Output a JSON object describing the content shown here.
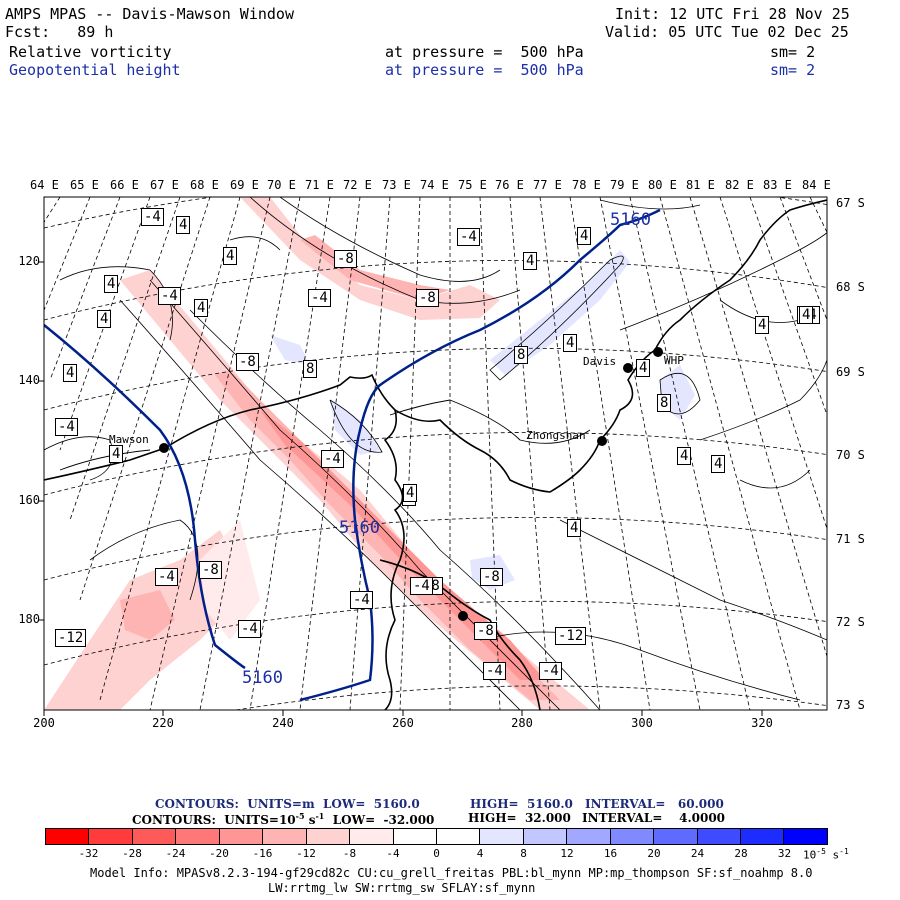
{
  "header": {
    "title": "AMPS MPAS -- Davis-Mawson Window",
    "forecast": "Fcst:   89 h",
    "init": "Init: 12 UTC Fri 28 Nov 25",
    "valid": "Valid: 05 UTC Tue 02 Dec 25",
    "field1_name": "Relative vorticity",
    "field1_level": "at pressure =  500 hPa",
    "field1_sm": "sm= 2",
    "field2_name": "Geopotential height",
    "field2_level": "at pressure =  500 hPa",
    "field2_sm": "sm= 2"
  },
  "map": {
    "lon_labels": [
      "64 E",
      "65 E",
      "66 E",
      "67 E",
      "68 E",
      "69 E",
      "70 E",
      "71 E",
      "72 E",
      "73 E",
      "74 E",
      "75 E",
      "76 E",
      "77 E",
      "78 E",
      "79 E",
      "80 E",
      "81 E",
      "82 E",
      "83 E",
      "84 E"
    ],
    "lat_labels": [
      "67 S",
      "68 S",
      "69 S",
      "70 S",
      "71 S",
      "72 S",
      "73 S"
    ],
    "x_axis": [
      "200",
      "220",
      "240",
      "260",
      "280",
      "300",
      "320"
    ],
    "y_axis": [
      "120",
      "140",
      "160",
      "180"
    ],
    "stations": [
      "Mawson",
      "Davis",
      "WHP",
      "Zhongshan"
    ],
    "height_labels": [
      "5160",
      "5160",
      "5160"
    ],
    "vort_labels": [
      "-4",
      "4",
      "4",
      "4",
      "-4",
      "4",
      "4",
      "4",
      "-4",
      "-8",
      "-8",
      "-4",
      "-8",
      "-4",
      "8",
      "-8",
      "-4",
      "4",
      "4",
      "4",
      "8",
      "4",
      "4",
      "8",
      "4",
      "4",
      "4",
      "4",
      "-4",
      "-4",
      "-8",
      "-4",
      "-4",
      "-4",
      "-4",
      "-8",
      "-8",
      "-4",
      "-12",
      "-12",
      "4",
      "4",
      "4"
    ]
  },
  "contours": {
    "line1_label": "CONTOURS:  UNITS=m  LOW=  5160.0",
    "line1_high": "HIGH=  5160.0",
    "line1_interval": "INTERVAL=   60.000",
    "line2_label": "CONTOURS:  UNITS=10",
    "line2_exp": "-5",
    "line2_unit": " s",
    "line2_exp2": "-1",
    "line2_low": "  LOW=  -32.000",
    "line2_high": "HIGH=  32.000",
    "line2_interval": "INTERVAL=    4.0000"
  },
  "colorbar": {
    "colors": [
      "#ff0000",
      "#ff3b3b",
      "#ff5a5a",
      "#ff7878",
      "#ff9696",
      "#ffb4b4",
      "#ffd2d2",
      "#ffebeb",
      "#ffffff",
      "#ffffff",
      "#e4e6ff",
      "#c3c7ff",
      "#a2a8ff",
      "#8189ff",
      "#5f6aff",
      "#3e4bff",
      "#1e2dff",
      "#0000ff"
    ],
    "labels": [
      "-32",
      "-28",
      "-24",
      "-20",
      "-16",
      "-12",
      "-8",
      "-4",
      "0",
      "4",
      "8",
      "12",
      "16",
      "20",
      "24",
      "28",
      "32"
    ],
    "units_label": "10",
    "units_exp": "-5",
    "units_rest": " s",
    "units_exp2": "-1"
  },
  "footer": {
    "line1": "Model Info: MPASv8.2.3-194-gf29cd82c CU:cu_grell_freitas PBL:bl_mynn MP:mp_thompson SF:sf_noahmp 8.0",
    "line2": "LW:rrtmg_lw SW:rrtmg_sw SFLAY:sf_mynn"
  }
}
